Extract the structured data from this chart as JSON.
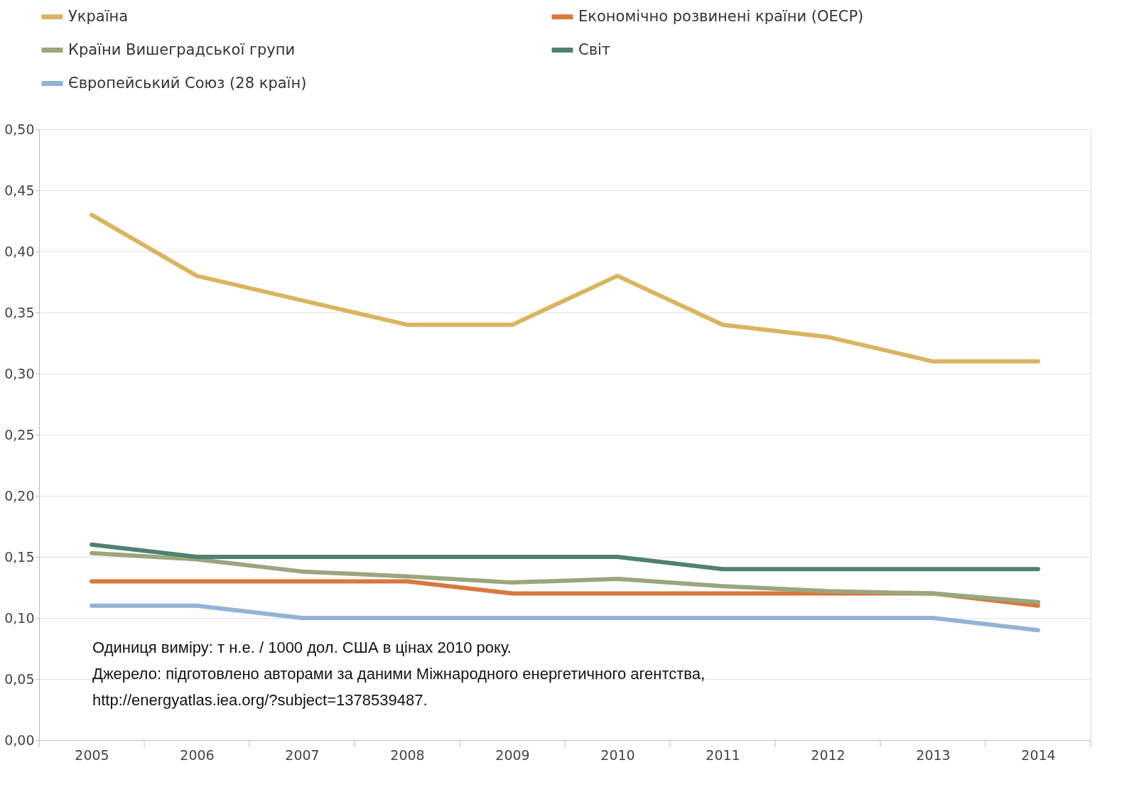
{
  "chart_data": {
    "type": "line",
    "categories": [
      "2005",
      "2006",
      "2007",
      "2008",
      "2009",
      "2010",
      "2011",
      "2012",
      "2013",
      "2014"
    ],
    "series": [
      {
        "name": "Україна",
        "color": "#d9b55f",
        "values": [
          0.43,
          0.38,
          0.36,
          0.34,
          0.34,
          0.38,
          0.34,
          0.33,
          0.31,
          0.31
        ]
      },
      {
        "name": "Економічно розвинені країни (OECP)",
        "color": "#d9773f",
        "values": [
          0.13,
          0.13,
          0.13,
          0.13,
          0.12,
          0.12,
          0.12,
          0.12,
          0.12,
          0.11
        ]
      },
      {
        "name": "Країни Вишеградської групи",
        "color": "#9aa67c",
        "values": [
          0.153,
          0.148,
          0.138,
          0.134,
          0.129,
          0.132,
          0.126,
          0.122,
          0.12,
          0.113
        ]
      },
      {
        "name": "Світ",
        "color": "#4f8270",
        "values": [
          0.16,
          0.15,
          0.15,
          0.15,
          0.15,
          0.15,
          0.14,
          0.14,
          0.14,
          0.14
        ]
      },
      {
        "name": "Європейський Союз (28 країн)",
        "color": "#93b3d3",
        "values": [
          0.11,
          0.11,
          0.1,
          0.1,
          0.1,
          0.1,
          0.1,
          0.1,
          0.1,
          0.09
        ]
      }
    ],
    "ylim": [
      0,
      0.5
    ],
    "yticks": [
      {
        "value": 0,
        "label": "0,00"
      },
      {
        "value": 0.05,
        "label": "0,05"
      },
      {
        "value": 0.1,
        "label": "0,10"
      },
      {
        "value": 0.15,
        "label": "0,15"
      },
      {
        "value": 0.2,
        "label": "0,20"
      },
      {
        "value": 0.25,
        "label": "0,25"
      },
      {
        "value": 0.3,
        "label": "0,30"
      },
      {
        "value": 0.35,
        "label": "0,35"
      },
      {
        "value": 0.4,
        "label": "0,40"
      },
      {
        "value": 0.45,
        "label": "0,45"
      },
      {
        "value": 0.5,
        "label": "0,50"
      }
    ],
    "grid": "y",
    "legend": "top left",
    "marker": "none",
    "line_style": "solid",
    "annotations": [
      "Одиниця виміру: т н.е. / 1000 дол. США в цінах 2010 року.",
      "Джерело: підготовлено авторами за даними Міжнародного енергетичного агентства,",
      "http://energyatlas.iea.org/?subject=1378539487."
    ]
  }
}
